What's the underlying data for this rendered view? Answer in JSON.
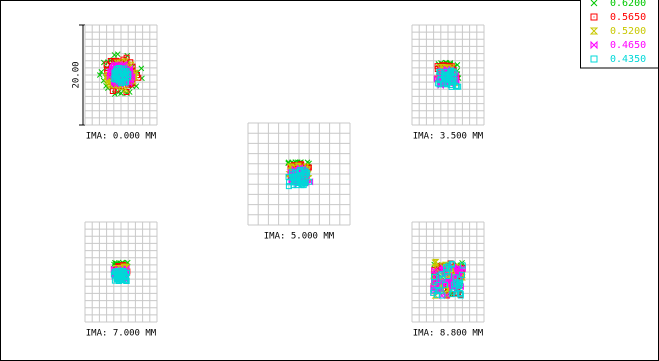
{
  "scale_bar": "20.00",
  "fields": [
    {
      "label": "IMA: 0.000 MM"
    },
    {
      "label": "IMA: 3.500 MM"
    },
    {
      "label": "IMA: 5.000 MM"
    },
    {
      "label": "IMA: 7.000 MM"
    },
    {
      "label": "IMA: 8.800 MM"
    }
  ],
  "legend": [
    {
      "wavelength": "0.6200",
      "color": "#00c800"
    },
    {
      "wavelength": "0.5650",
      "color": "#ff0000"
    },
    {
      "wavelength": "0.5200",
      "color": "#c8c800"
    },
    {
      "wavelength": "0.4650",
      "color": "#ff00ff"
    },
    {
      "wavelength": "0.4350",
      "color": "#00d8d8"
    }
  ]
}
